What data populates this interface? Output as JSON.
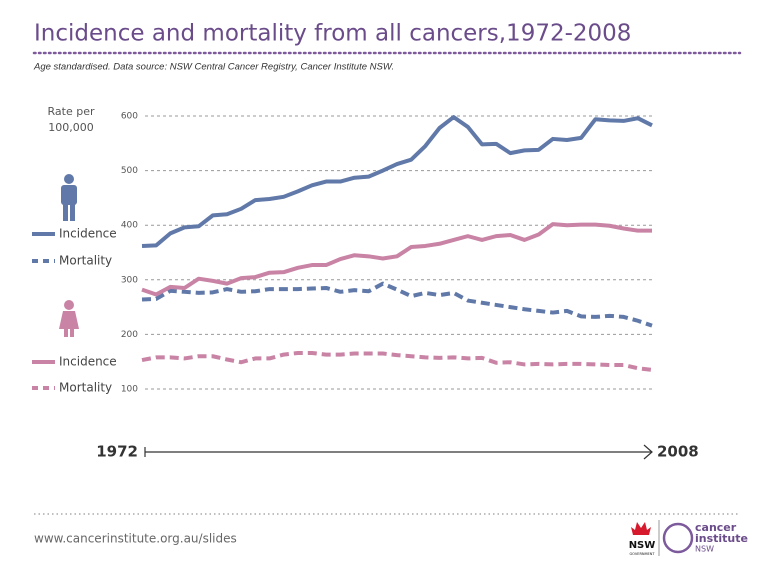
{
  "chart_data": {
    "type": "line",
    "title": "Incidence and mortality from all cancers,1972-2008",
    "subtitle": "Age standardised. Data source: NSW Central Cancer Registry, Cancer Institute NSW.",
    "ylabel": "Rate per 100,000",
    "x": [
      1972,
      1973,
      1974,
      1975,
      1976,
      1977,
      1978,
      1979,
      1980,
      1981,
      1982,
      1983,
      1984,
      1985,
      1986,
      1987,
      1988,
      1989,
      1990,
      1991,
      1992,
      1993,
      1994,
      1995,
      1996,
      1997,
      1998,
      1999,
      2000,
      2001,
      2002,
      2003,
      2004,
      2005,
      2006,
      2007,
      2008
    ],
    "xlim": [
      1972,
      2008
    ],
    "xticks": [
      1972,
      2008
    ],
    "ylim": [
      100,
      600
    ],
    "yticks": [
      100,
      200,
      300,
      400,
      500,
      600
    ],
    "grid": true,
    "series": [
      {
        "name": "Incidence",
        "color": "#6079a8",
        "line_style": "solid",
        "values": [
          362,
          363,
          385,
          396,
          398,
          418,
          420,
          430,
          446,
          448,
          452,
          462,
          473,
          480,
          480,
          487,
          489,
          500,
          512,
          520,
          545,
          578,
          598,
          580,
          548,
          549,
          532,
          537,
          538,
          558,
          556,
          560,
          594,
          592,
          591,
          596,
          583
        ]
      },
      {
        "name": "Mortality",
        "color": "#6079a8",
        "line_style": "dashed",
        "values": [
          264,
          265,
          280,
          278,
          276,
          277,
          283,
          278,
          279,
          283,
          283,
          283,
          284,
          285,
          278,
          281,
          279,
          293,
          282,
          270,
          276,
          272,
          276,
          262,
          258,
          254,
          250,
          246,
          243,
          240,
          243,
          233,
          232,
          234,
          232,
          225,
          216
        ]
      },
      {
        "name": "Incidence",
        "color": "#c983a5",
        "line_style": "solid",
        "values": [
          282,
          273,
          287,
          285,
          302,
          298,
          293,
          303,
          305,
          313,
          314,
          322,
          327,
          327,
          338,
          345,
          343,
          339,
          343,
          360,
          362,
          366,
          373,
          380,
          373,
          380,
          382,
          373,
          383,
          402,
          400,
          401,
          401,
          399,
          394,
          390,
          390
        ]
      },
      {
        "name": "Mortality",
        "color": "#c983a5",
        "line_style": "dashed",
        "values": [
          153,
          158,
          158,
          156,
          160,
          160,
          154,
          149,
          156,
          156,
          163,
          166,
          166,
          163,
          163,
          165,
          165,
          165,
          162,
          160,
          158,
          157,
          158,
          156,
          157,
          148,
          149,
          145,
          146,
          145,
          146,
          146,
          145,
          144,
          144,
          138,
          135
        ]
      }
    ]
  },
  "footer": {
    "url": "www.cancerinstitute.org.au/slides",
    "nsw": "NSW",
    "government": "GOVERNMENT",
    "logo_line1": "cancer",
    "logo_line2": "institute",
    "logo_line3": "NSW"
  }
}
